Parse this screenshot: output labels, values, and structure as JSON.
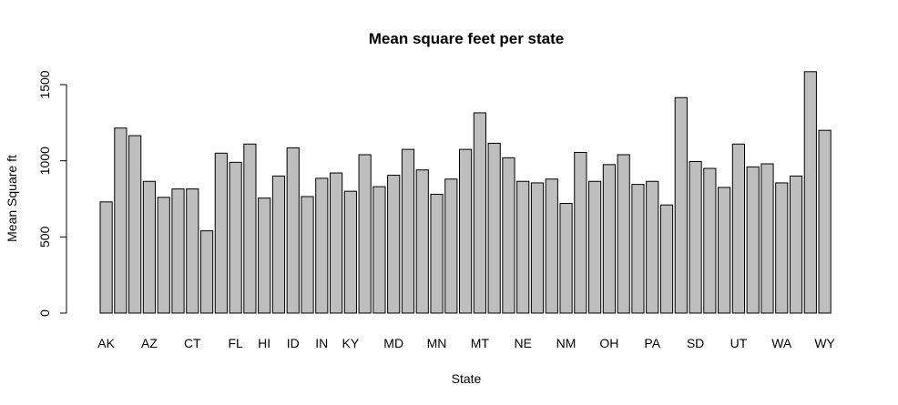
{
  "chart_data": {
    "type": "bar",
    "title": "Mean square feet per state",
    "xlabel": "State",
    "ylabel": "Mean Square ft",
    "ylim": [
      0,
      1650
    ],
    "yticks": [
      0,
      500,
      1000,
      1500
    ],
    "x_tick_labels": [
      {
        "index": 0,
        "label": "AK"
      },
      {
        "index": 3,
        "label": "AZ"
      },
      {
        "index": 6,
        "label": "CT"
      },
      {
        "index": 9,
        "label": "FL"
      },
      {
        "index": 11,
        "label": "HI"
      },
      {
        "index": 13,
        "label": "ID"
      },
      {
        "index": 15,
        "label": "IN"
      },
      {
        "index": 17,
        "label": "KY"
      },
      {
        "index": 20,
        "label": "MD"
      },
      {
        "index": 23,
        "label": "MN"
      },
      {
        "index": 26,
        "label": "MT"
      },
      {
        "index": 29,
        "label": "NE"
      },
      {
        "index": 32,
        "label": "NM"
      },
      {
        "index": 35,
        "label": "OH"
      },
      {
        "index": 38,
        "label": "PA"
      },
      {
        "index": 41,
        "label": "SD"
      },
      {
        "index": 44,
        "label": "UT"
      },
      {
        "index": 47,
        "label": "WA"
      },
      {
        "index": 50,
        "label": "WY"
      }
    ],
    "values": [
      730,
      1215,
      1165,
      865,
      760,
      815,
      815,
      540,
      1050,
      990,
      1110,
      755,
      900,
      1085,
      765,
      885,
      920,
      800,
      1040,
      830,
      905,
      1075,
      940,
      780,
      880,
      1075,
      1315,
      1115,
      1020,
      865,
      855,
      880,
      720,
      1055,
      865,
      975,
      1040,
      845,
      865,
      710,
      1415,
      995,
      950,
      825,
      1110,
      960,
      980,
      855,
      900,
      1585,
      1200
    ],
    "bar_color": "#bebebe",
    "border_color": "#000000",
    "grid": false,
    "legend": "none"
  }
}
